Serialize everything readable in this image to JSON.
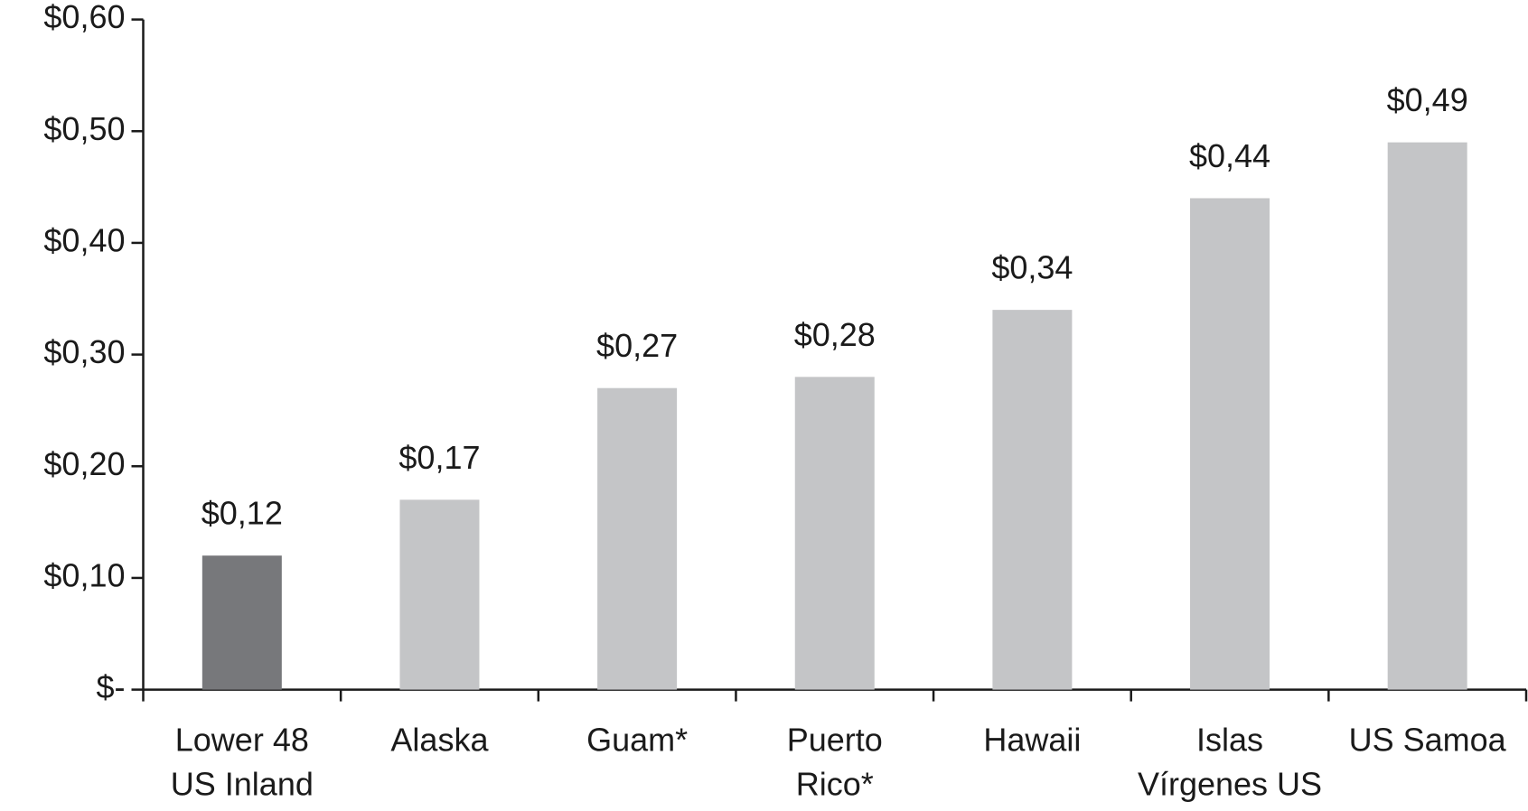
{
  "chart_data": {
    "type": "bar",
    "categories": [
      "Lower 48\nUS Inland",
      "Alaska",
      "Guam*",
      "Puerto\nRico*",
      "Hawaii",
      "Islas\nVírgenes US",
      "US Samoa"
    ],
    "values": [
      0.12,
      0.17,
      0.27,
      0.28,
      0.34,
      0.44,
      0.49
    ],
    "value_labels": [
      "$0,12",
      "$0,17",
      "$0,27",
      "$0,28",
      "$0,34",
      "$0,44",
      "$0,49"
    ],
    "colors": [
      "#77787b",
      "#c4c5c7",
      "#c4c5c7",
      "#c4c5c7",
      "#c4c5c7",
      "#c4c5c7",
      "#c4c5c7"
    ],
    "ylim": [
      0,
      0.6
    ],
    "yticks": [
      {
        "value": 0,
        "label": "$-"
      },
      {
        "value": 0.1,
        "label": "$0,10"
      },
      {
        "value": 0.2,
        "label": "$0,20"
      },
      {
        "value": 0.3,
        "label": "$0,30"
      },
      {
        "value": 0.4,
        "label": "$0,40"
      },
      {
        "value": 0.5,
        "label": "$0,50"
      },
      {
        "value": 0.6,
        "label": "$0,60"
      }
    ],
    "grid": false
  }
}
